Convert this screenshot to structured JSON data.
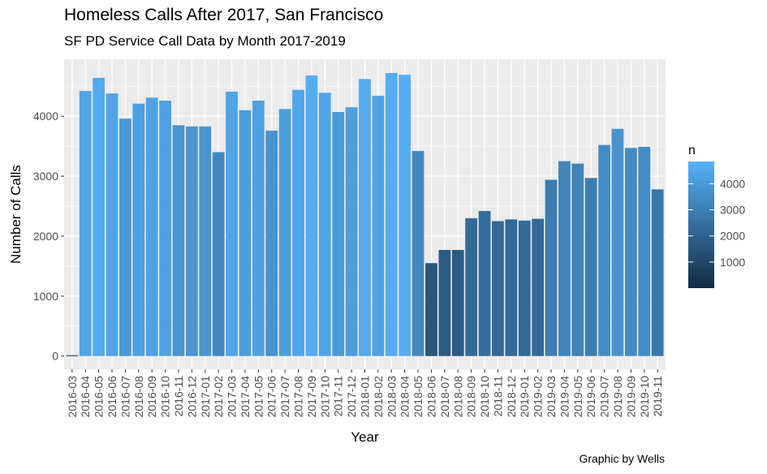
{
  "chart_data": {
    "type": "bar",
    "title": "Homeless Calls After 2017, San Francisco",
    "subtitle": "SF PD Service Call Data by Month 2017-2019",
    "caption": "Graphic by Wells",
    "xlabel": "Year",
    "ylabel": "Number of Calls",
    "ylim": [
      -220,
      4950
    ],
    "yticks": [
      0,
      1000,
      2000,
      3000,
      4000
    ],
    "grid": true,
    "legend": {
      "title": "n",
      "position": "right",
      "ticks": [
        1000,
        2000,
        3000,
        4000
      ],
      "range": [
        0,
        4850
      ],
      "color_low": "#132B43",
      "color_high": "#56B1F7"
    },
    "categories": [
      "2016-03",
      "2016-04",
      "2016-05",
      "2016-06",
      "2016-07",
      "2016-08",
      "2016-09",
      "2016-10",
      "2016-11",
      "2016-12",
      "2017-01",
      "2017-02",
      "2017-03",
      "2017-04",
      "2017-05",
      "2017-06",
      "2017-07",
      "2017-08",
      "2017-09",
      "2017-10",
      "2017-11",
      "2017-12",
      "2018-01",
      "2018-02",
      "2018-03",
      "2018-04",
      "2018-05",
      "2018-06",
      "2018-07",
      "2018-08",
      "2018-09",
      "2018-10",
      "2018-11",
      "2018-12",
      "2019-01",
      "2019-02",
      "2019-03",
      "2019-04",
      "2019-05",
      "2019-06",
      "2019-07",
      "2019-08",
      "2019-09",
      "2019-10",
      "2019-11"
    ],
    "values": [
      10,
      4420,
      4640,
      4380,
      3960,
      4210,
      4310,
      4260,
      3850,
      3830,
      3830,
      3400,
      4410,
      4100,
      4260,
      3760,
      4120,
      4440,
      4680,
      4390,
      4070,
      4150,
      4620,
      4340,
      4720,
      4690,
      3420,
      1550,
      1770,
      1770,
      2300,
      2420,
      2250,
      2280,
      2260,
      2290,
      2940,
      3250,
      3210,
      2970,
      3520,
      3790,
      3470,
      3490,
      2780
    ]
  }
}
